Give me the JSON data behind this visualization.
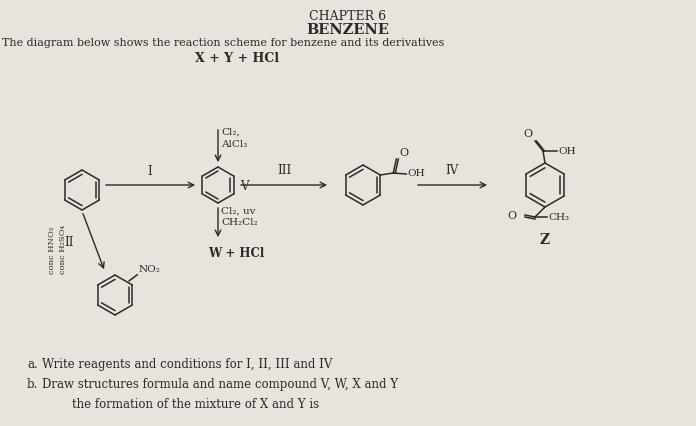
{
  "title_line1": "CHAPTER 6",
  "title_line2": "BENZENE",
  "subtitle": "The diagram below shows the reaction scheme for benzene and its derivatives",
  "bg_color": "#e8e4dc",
  "text_color": "#2a2a2a",
  "question_a_label": "a.",
  "question_a_text": "Write reagents and conditions for I, II, III and IV",
  "question_b_label": "b.",
  "question_b_text": "Draw structures formula and name compound V, W, X and Y",
  "question_b2_text": "        the formation of the mixture of X and Y is",
  "xy_hcl": "X + Y + HCl",
  "w_hcl": "W + HCl",
  "label_V": "V",
  "label_Z": "Z",
  "label_I": "I",
  "label_II": "II",
  "label_III": "III",
  "label_IV": "IV",
  "reagent_up_1": "Cl₂,",
  "reagent_up_2": "AlCl₃",
  "reagent_down_1": "Cl₂, uv",
  "reagent_down_2": "CH₂Cl₂",
  "reagent_II_1": "conc HNO₃",
  "reagent_II_2": "conc H₂SO₄",
  "oh_label": "OH",
  "ch3_label": "CH₃",
  "no2_label": "NO₂",
  "o_label": "O",
  "oh2_label": "OH"
}
